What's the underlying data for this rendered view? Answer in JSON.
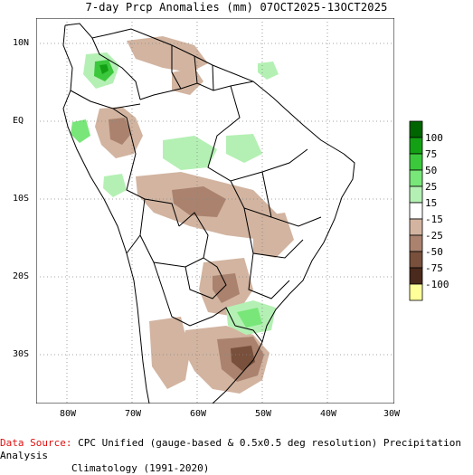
{
  "title": "7-day Prcp Anomalies (mm) 07OCT2025-13OCT2025",
  "map": {
    "lon_labels": [
      "80W",
      "70W",
      "60W",
      "50W",
      "40W",
      "30W"
    ],
    "lat_labels": [
      "10N",
      "EQ",
      "10S",
      "20S",
      "30S"
    ]
  },
  "legend": {
    "labels": [
      "100",
      "75",
      "50",
      "25",
      "15",
      "-15",
      "-25",
      "-50",
      "-75",
      "-100"
    ],
    "colors": [
      "#006400",
      "#14a014",
      "#3cc83c",
      "#78e678",
      "#b4f0b4",
      "#ffffff",
      "#d2b4a0",
      "#aa826e",
      "#78503c",
      "#4a2a1c",
      "#ffff9a"
    ]
  },
  "footer": {
    "source_label": "Data Source:",
    "source_text": "CPC Unified (gauge-based & 0.5x0.5 deg resolution) Precipitation Analysis",
    "climatology": "Climatology (1991-2020)"
  }
}
